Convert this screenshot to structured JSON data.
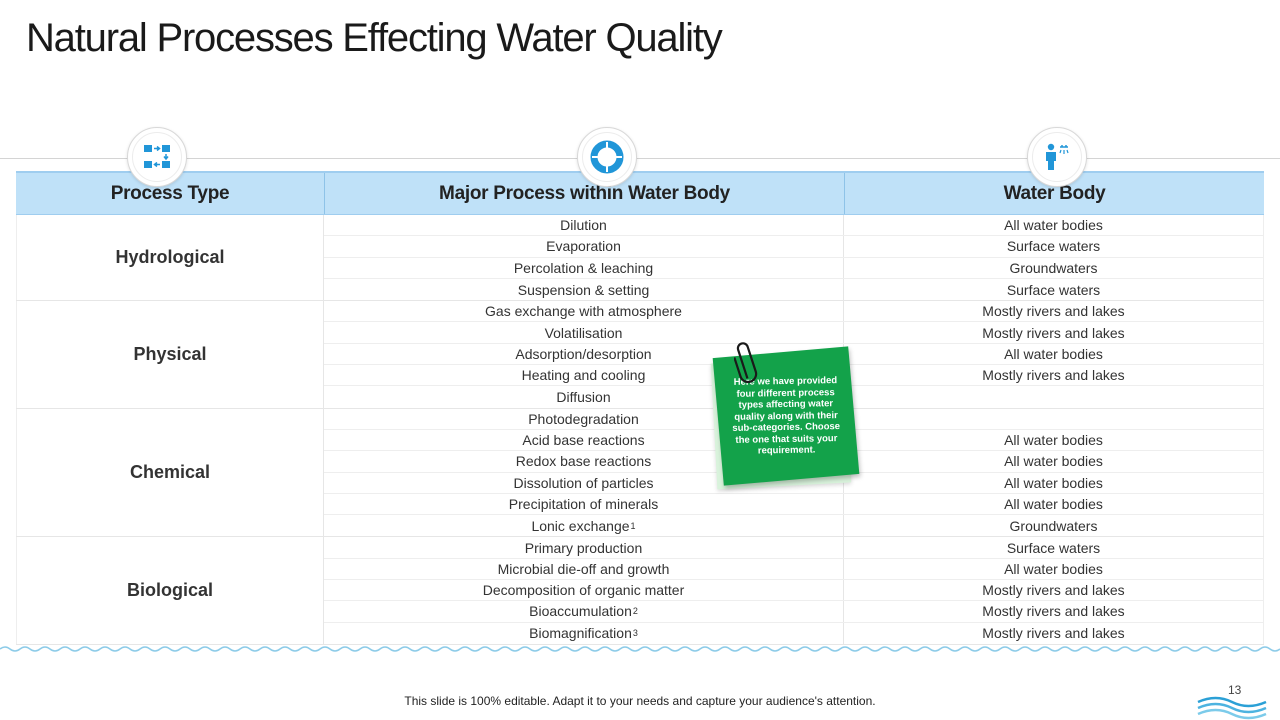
{
  "slide": {
    "title": "Natural Processes Effecting Water Quality",
    "footer_text": "This slide is 100% editable. Adapt it to your needs and capture your audience's attention.",
    "page_number": "13"
  },
  "header_icons": [
    "process-flow-icon",
    "cycle-icon",
    "person-water-icon"
  ],
  "table": {
    "headers": [
      "Process Type",
      "Major Process within Water Body",
      "Water Body"
    ],
    "groups": [
      {
        "type": "Hydrological",
        "rows": [
          {
            "process": "Dilution",
            "sup": "",
            "water": "All water bodies"
          },
          {
            "process": "Evaporation",
            "sup": "",
            "water": "Surface waters"
          },
          {
            "process": "Percolation & leaching",
            "sup": "",
            "water": "Groundwaters"
          },
          {
            "process": "Suspension & setting",
            "sup": "",
            "water": "Surface waters"
          }
        ]
      },
      {
        "type": "Physical",
        "rows": [
          {
            "process": "Gas exchange with atmosphere",
            "sup": "",
            "water": "Mostly rivers and lakes"
          },
          {
            "process": "Volatilisation",
            "sup": "",
            "water": "Mostly rivers and lakes"
          },
          {
            "process": "Adsorption/desorption",
            "sup": "",
            "water": "All water bodies"
          },
          {
            "process": "Heating and cooling",
            "sup": "",
            "water": "Mostly rivers and lakes"
          },
          {
            "process": "Diffusion",
            "sup": "",
            "water": ""
          }
        ]
      },
      {
        "type": "Chemical",
        "rows": [
          {
            "process": "Photodegradation",
            "sup": "",
            "water": ""
          },
          {
            "process": "Acid base reactions",
            "sup": "",
            "water": "All water bodies"
          },
          {
            "process": "Redox base reactions",
            "sup": "",
            "water": "All water bodies"
          },
          {
            "process": "Dissolution of particles",
            "sup": "",
            "water": "All water bodies"
          },
          {
            "process": "Precipitation of minerals",
            "sup": "",
            "water": "All water bodies"
          },
          {
            "process": "Lonic exchange",
            "sup": "1",
            "water": "Groundwaters"
          }
        ]
      },
      {
        "type": "Biological",
        "rows": [
          {
            "process": "Primary production",
            "sup": "",
            "water": "Surface waters"
          },
          {
            "process": "Microbial die-off and growth",
            "sup": "",
            "water": "All water bodies"
          },
          {
            "process": "Decomposition of organic matter",
            "sup": "",
            "water": "Mostly rivers and lakes"
          },
          {
            "process": "Bioaccumulation",
            "sup": "2",
            "water": "Mostly rivers and lakes"
          },
          {
            "process": "Biomagnification",
            "sup": "3",
            "water": "Mostly rivers and lakes"
          }
        ]
      }
    ]
  },
  "sticky_note": {
    "text": "Here we have provided four different process types affecting water quality along with their sub-categories. Choose the one that suits your requirement."
  },
  "colors": {
    "header_bg": "#bfe1f8",
    "icon_blue": "#2196d8",
    "note_green": "#13a24a",
    "wave": "#8ccbe8"
  }
}
